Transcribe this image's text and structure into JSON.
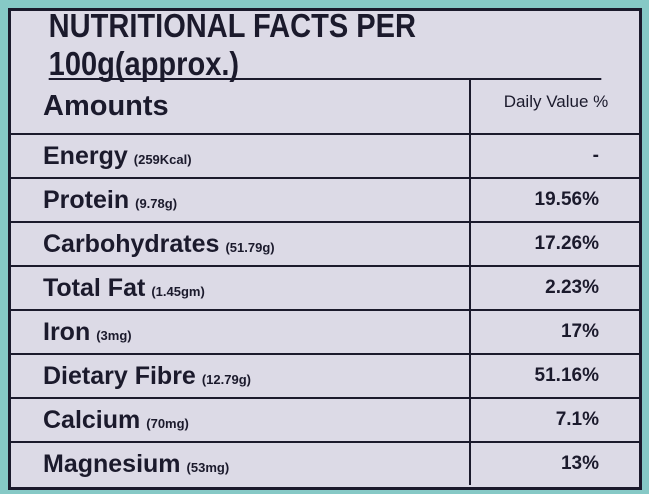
{
  "title": "NUTRITIONAL FACTS PER 100g(approx.)",
  "header": {
    "amounts": "Amounts",
    "daily_value": "Daily Value %"
  },
  "rows": [
    {
      "name": "Energy",
      "amount": "(259Kcal)",
      "daily_value": "-"
    },
    {
      "name": "Protein",
      "amount": "(9.78g)",
      "daily_value": "19.56%"
    },
    {
      "name": "Carbohydrates",
      "amount": "(51.79g)",
      "daily_value": "17.26%"
    },
    {
      "name": "Total Fat",
      "amount": "(1.45gm)",
      "daily_value": "2.23%"
    },
    {
      "name": "Iron",
      "amount": "(3mg)",
      "daily_value": "17%"
    },
    {
      "name": "Dietary Fibre",
      "amount": "(12.79g)",
      "daily_value": "51.16%"
    },
    {
      "name": "Calcium",
      "amount": "(70mg)",
      "daily_value": "7.1%"
    },
    {
      "name": "Magnesium",
      "amount": "(53mg)",
      "daily_value": "13%"
    }
  ]
}
